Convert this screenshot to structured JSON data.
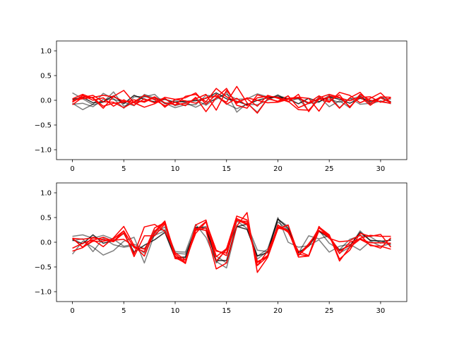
{
  "chart_data": [
    {
      "type": "line",
      "xlim": [
        -1.55,
        32.55
      ],
      "ylim": [
        -1.2,
        1.2
      ],
      "xticks": [
        0,
        5,
        10,
        15,
        20,
        25,
        30
      ],
      "xtick_labels": [
        "0",
        "5",
        "10",
        "15",
        "20",
        "25",
        "30"
      ],
      "yticks": [
        -1.0,
        -0.5,
        0.0,
        0.5,
        1.0
      ],
      "ytick_labels": [
        "−1.0",
        "−0.5",
        "0.0",
        "0.5",
        "1.0"
      ],
      "grid": false,
      "series": [
        {
          "color": "#000000",
          "alpha": 0.5,
          "values": [
            0.15,
            0.03,
            -0.09,
            -0.04,
            0.17,
            -0.12,
            -0.04,
            0.07,
            0.12,
            -0.07,
            -0.01,
            -0.04,
            0.01,
            -0.1,
            0.05,
            0.12,
            0.02,
            0.03,
            0.13,
            0.07,
            0.08,
            0.03,
            0.05,
            -0.07,
            0.04,
            0.02,
            -0.04,
            0.02,
            0.08,
            -0.05,
            0.06,
            0.02
          ]
        },
        {
          "color": "#000000",
          "alpha": 0.5,
          "values": [
            -0.06,
            -0.19,
            -0.08,
            0.14,
            0.03,
            -0.16,
            0.07,
            0.08,
            0.02,
            0.03,
            -0.11,
            -0.05,
            -0.14,
            -0.04,
            0.02,
            0.16,
            -0.24,
            -0.06,
            -0.24,
            0.03,
            0.1,
            0.03,
            0.03,
            -0.06,
            -0.04,
            0.1,
            -0.15,
            0.05,
            -0.08,
            -0.06,
            0.05,
            -0.05
          ]
        },
        {
          "color": "#000000",
          "alpha": 0.5,
          "values": [
            -0.08,
            -0.06,
            -0.13,
            0.02,
            0.02,
            -0.04,
            -0.11,
            0.12,
            0.04,
            -0.06,
            -0.15,
            -0.09,
            -0.09,
            0.1,
            0.08,
            -0.07,
            -0.17,
            -0.08,
            -0.09,
            0.0,
            0.11,
            -0.03,
            0.04,
            -0.22,
            0.07,
            -0.13,
            -0.01,
            -0.15,
            0.1,
            -0.08,
            -0.01,
            -0.07
          ]
        },
        {
          "color": "#000000",
          "alpha": 0.8,
          "values": [
            0.02,
            0.06,
            -0.05,
            -0.03,
            0.09,
            -0.07,
            0.1,
            0.02,
            -0.03,
            0.02,
            -0.04,
            -0.02,
            -0.01,
            0.04,
            0.15,
            0.03,
            -0.02,
            -0.09,
            0.0,
            0.05,
            0.06,
            0.03,
            -0.07,
            0.04,
            -0.03,
            0.07,
            0.02,
            -0.06,
            0.04,
            -0.02,
            0.05,
            -0.03
          ]
        },
        {
          "color": "#ff0000",
          "alpha": 1.0,
          "values": [
            0.03,
            0.12,
            0.04,
            -0.16,
            0.08,
            0.2,
            -0.05,
            -0.14,
            -0.07,
            0.04,
            -0.1,
            0.08,
            0.12,
            -0.03,
            0.24,
            0.07,
            -0.03,
            0.03,
            -0.12,
            0.1,
            0.04,
            -0.03,
            0.12,
            -0.23,
            0.05,
            0.12,
            0.06,
            -0.13,
            0.07,
            -0.1,
            0.05,
            -0.05
          ]
        },
        {
          "color": "#ff0000",
          "alpha": 1.0,
          "values": [
            -0.09,
            0.06,
            0.1,
            -0.03,
            -0.04,
            -0.15,
            -0.03,
            0.1,
            0.01,
            -0.11,
            -0.04,
            -0.11,
            0.06,
            -0.23,
            0.05,
            0.24,
            -0.1,
            -0.16,
            0.11,
            0.05,
            -0.03,
            0.04,
            0.06,
            0.04,
            -0.22,
            0.09,
            0.05,
            -0.01,
            0.06,
            0.07,
            -0.04,
            0.05
          ]
        },
        {
          "color": "#ff0000",
          "alpha": 1.0,
          "values": [
            -0.03,
            0.07,
            0.05,
            -0.12,
            -0.06,
            -0.04,
            0.01,
            -0.04,
            0.06,
            -0.14,
            0.02,
            -0.01,
            -0.06,
            0.05,
            0.08,
            -0.04,
            0.28,
            -0.05,
            -0.26,
            0.03,
            -0.02,
            0.09,
            -0.15,
            -0.06,
            0.03,
            -0.04,
            0.16,
            0.1,
            -0.05,
            0.04,
            0.15,
            -0.05
          ]
        },
        {
          "color": "#ff0000",
          "alpha": 1.0,
          "values": [
            0.0,
            0.03,
            0.06,
            0.1,
            0.07,
            -0.02,
            -0.04,
            -0.02,
            0.07,
            -0.05,
            -0.09,
            -0.06,
            0.03,
            0.12,
            -0.2,
            0.2,
            -0.06,
            0.05,
            0.0,
            -0.05,
            -0.04,
            0.02,
            0.05,
            -0.05,
            0.09,
            -0.02,
            0.11,
            -0.15,
            0.12,
            0.0,
            -0.03,
            -0.06
          ]
        },
        {
          "color": "#ff0000",
          "alpha": 1.0,
          "values": [
            -0.04,
            0.1,
            0.0,
            0.05,
            -0.12,
            0.01,
            -0.1,
            0.03,
            -0.05,
            0.06,
            0.02,
            0.05,
            0.15,
            -0.08,
            0.12,
            -0.08,
            0.04,
            -0.11,
            0.05,
            0.08,
            0.06,
            -0.02,
            -0.19,
            -0.2,
            0.02,
            0.06,
            -0.16,
            0.05,
            0.16,
            -0.06,
            0.07,
            0.06
          ]
        }
      ]
    },
    {
      "type": "line",
      "xlim": [
        -1.55,
        32.55
      ],
      "ylim": [
        -1.2,
        1.2
      ],
      "xticks": [
        0,
        5,
        10,
        15,
        20,
        25,
        30
      ],
      "xtick_labels": [
        "0",
        "5",
        "10",
        "15",
        "20",
        "25",
        "30"
      ],
      "yticks": [
        -1.0,
        -0.5,
        0.0,
        0.5,
        1.0
      ],
      "ytick_labels": [
        "−1.0",
        "−0.5",
        "0.0",
        "0.5",
        "1.0"
      ],
      "grid": false,
      "series": [
        {
          "color": "#000000",
          "alpha": 0.5,
          "values": [
            -0.24,
            0.02,
            -0.1,
            -0.26,
            -0.17,
            0.02,
            0.1,
            -0.42,
            0.17,
            0.31,
            -0.19,
            -0.2,
            0.36,
            0.1,
            -0.39,
            -0.52,
            0.32,
            0.36,
            -0.16,
            -0.19,
            0.5,
            0.0,
            -0.1,
            -0.07,
            0.05,
            -0.2,
            -0.08,
            -0.04,
            -0.16,
            0.02,
            -0.08,
            -0.03
          ]
        },
        {
          "color": "#000000",
          "alpha": 0.5,
          "values": [
            0.12,
            0.15,
            0.08,
            0.14,
            0.06,
            -0.08,
            -0.04,
            -0.13,
            0.14,
            0.23,
            -0.31,
            -0.29,
            0.29,
            0.32,
            -0.42,
            -0.12,
            0.31,
            0.37,
            -0.28,
            -0.14,
            0.47,
            0.32,
            -0.22,
            0.13,
            0.07,
            0.13,
            -0.22,
            -0.1,
            0.23,
            0.03,
            0.03,
            -0.06
          ]
        },
        {
          "color": "#000000",
          "alpha": 0.5,
          "values": [
            0.03,
            0.07,
            -0.19,
            0.08,
            -0.05,
            -0.1,
            -0.07,
            -0.22,
            0.24,
            0.25,
            -0.22,
            -0.24,
            0.27,
            0.24,
            -0.28,
            -0.42,
            0.43,
            0.28,
            -0.34,
            -0.18,
            0.41,
            0.25,
            -0.21,
            -0.06,
            0.24,
            -0.02,
            -0.15,
            0.06,
            0.13,
            0.11,
            -0.02,
            0.06
          ]
        },
        {
          "color": "#000000",
          "alpha": 0.8,
          "values": [
            0.05,
            -0.03,
            0.15,
            -0.02,
            0.03,
            0.18,
            -0.2,
            -0.06,
            0.05,
            0.2,
            -0.32,
            -0.31,
            0.3,
            0.29,
            -0.37,
            -0.37,
            0.32,
            0.26,
            -0.28,
            -0.21,
            0.47,
            0.28,
            -0.21,
            -0.08,
            0.22,
            0.09,
            -0.16,
            -0.07,
            0.2,
            0.04,
            0.02,
            0.04
          ]
        },
        {
          "color": "#ff0000",
          "alpha": 1.0,
          "values": [
            -0.12,
            -0.02,
            0.05,
            -0.09,
            0.09,
            0.32,
            -0.07,
            -0.28,
            0.22,
            0.43,
            -0.28,
            -0.43,
            0.35,
            0.45,
            -0.29,
            -0.13,
            0.53,
            0.45,
            -0.47,
            -0.29,
            0.34,
            0.24,
            -0.3,
            -0.28,
            0.31,
            0.15,
            -0.34,
            -0.16,
            0.18,
            0.12,
            0.16,
            -0.1
          ]
        },
        {
          "color": "#ff0000",
          "alpha": 1.0,
          "values": [
            0.08,
            -0.1,
            0.1,
            0.05,
            0.01,
            0.19,
            -0.24,
            0.31,
            0.36,
            0.22,
            -0.21,
            -0.36,
            0.18,
            0.41,
            -0.16,
            -0.27,
            0.48,
            0.38,
            -0.39,
            -0.3,
            0.31,
            0.24,
            -0.27,
            -0.07,
            0.29,
            0.12,
            -0.18,
            -0.06,
            0.08,
            0.14,
            0.12,
            0.12
          ]
        },
        {
          "color": "#ff0000",
          "alpha": 1.0,
          "values": [
            0.08,
            0.06,
            0.09,
            0.05,
            0.04,
            0.06,
            -0.09,
            -0.14,
            0.19,
            0.4,
            -0.24,
            -0.41,
            0.28,
            0.24,
            -0.54,
            -0.42,
            0.33,
            0.6,
            -0.61,
            -0.31,
            0.27,
            0.35,
            -0.24,
            -0.28,
            0.23,
            0.15,
            -0.38,
            -0.1,
            0.06,
            -0.05,
            -0.12,
            0.09
          ]
        },
        {
          "color": "#ff0000",
          "alpha": 1.0,
          "values": [
            -0.18,
            -0.11,
            0.04,
            0.1,
            0.02,
            0.23,
            -0.29,
            0.13,
            0.13,
            0.37,
            -0.33,
            -0.36,
            0.24,
            0.29,
            -0.18,
            -0.22,
            0.45,
            0.36,
            -0.41,
            -0.27,
            0.35,
            0.2,
            -0.18,
            -0.27,
            0.32,
            0.08,
            0.01,
            0.03,
            0.15,
            -0.07,
            -0.08,
            -0.14
          ]
        },
        {
          "color": "#ff0000",
          "alpha": 1.0,
          "values": [
            0.08,
            -0.1,
            0.02,
            0.02,
            0.07,
            0.23,
            -0.11,
            -0.19,
            0.29,
            0.4,
            -0.31,
            -0.42,
            0.24,
            0.42,
            -0.38,
            -0.15,
            0.44,
            0.42,
            -0.47,
            -0.18,
            0.29,
            0.23,
            -0.26,
            -0.03,
            0.24,
            0.1,
            -0.23,
            0.0,
            0.07,
            -0.01,
            -0.01,
            -0.02
          ]
        }
      ]
    }
  ]
}
